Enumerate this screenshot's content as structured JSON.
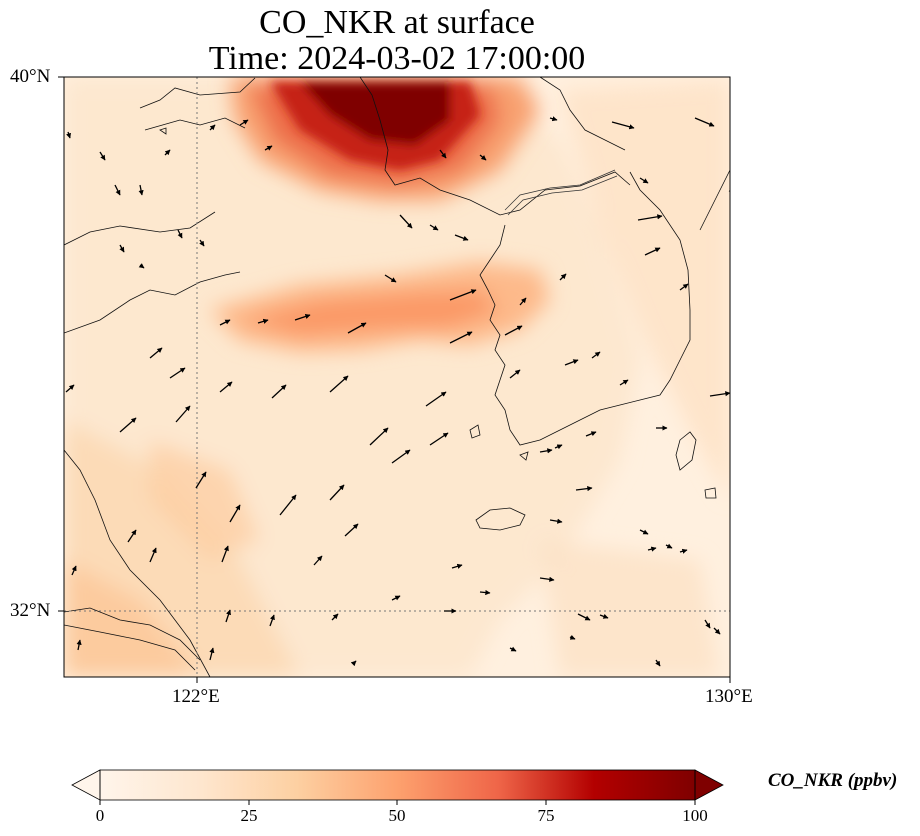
{
  "title": {
    "line1": "CO_NKR at surface",
    "line2": "Time: 2024-03-02 17:00:00"
  },
  "axes": {
    "y_ticks": [
      "40°N",
      "32°N"
    ],
    "x_ticks": [
      "122°E",
      "130°E"
    ]
  },
  "colorbar": {
    "label": "CO_NKR (ppbv)",
    "ticks": [
      "0",
      "25",
      "50",
      "75",
      "100"
    ],
    "min": 0,
    "max": 100,
    "extend": "both",
    "colormap": [
      "#fff5eb",
      "#fdd9b4",
      "#fdae6b",
      "#f67b4b",
      "#d7301f",
      "#a50f15",
      "#7f0000"
    ]
  },
  "map": {
    "region": "Yellow Sea / Korean Peninsula",
    "lon_range": [
      120,
      130
    ],
    "lat_range": [
      31,
      40
    ],
    "gridlines": "dotted at 122°E and 32°N",
    "plumes": [
      {
        "name": "northern plume (Bohai / Liaodong)",
        "peak_ppbv": 100
      },
      {
        "name": "central Yellow Sea band",
        "peak_ppbv": 45
      },
      {
        "name": "southwest coastal band",
        "peak_ppbv": 25
      }
    ],
    "wind_vectors": "black arrows, predominantly north-eastward"
  }
}
